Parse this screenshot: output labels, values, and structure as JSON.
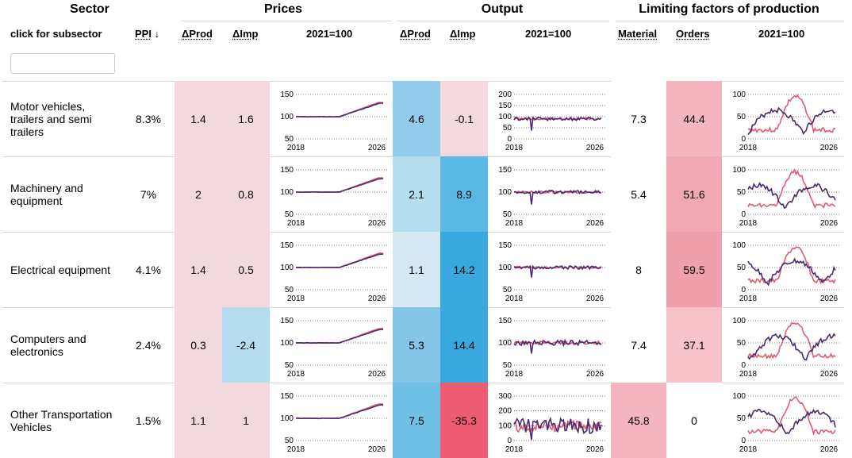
{
  "groups": {
    "sector": "Sector",
    "prices": "Prices",
    "output": "Output",
    "limiting": "Limiting factors of production"
  },
  "columns": {
    "subsector": "click for subsector",
    "ppi": "PPI",
    "ppi_sort": "↓",
    "p_dprod": "ΔProd",
    "p_dimp": "ΔImp",
    "p_index": "2021=100",
    "o_dprod": "ΔProd",
    "o_dimp": "ΔImp",
    "o_index": "2021=100",
    "material": "Material",
    "orders": "Orders",
    "l_index": "2021=100"
  },
  "filter": {
    "placeholder": "",
    "value": ""
  },
  "colors": {
    "series_a": "#e05c75",
    "series_b": "#4a2a6a",
    "blue_dark": "#39a8de",
    "red_dark": "#ee5c72"
  },
  "rows": [
    {
      "name": "Motor vehicles, trailers and semi trailers",
      "ppi": "8.3%",
      "p_dprod": "1.4",
      "p_dimp": "1.6",
      "o_dprod": "4.6",
      "o_dimp": "-0.1",
      "material": "7.3",
      "orders": "44.4",
      "bg": {
        "p_dprod": "#f3d9de",
        "p_dimp": "#f3d9de",
        "o_dprod": "#93ccea",
        "o_dimp": "#f3d9de",
        "material": "#ffffff",
        "orders": "#f5b5c0"
      },
      "prices": {
        "yticks": [
          "150",
          "100",
          "50"
        ],
        "xticks": [
          "2018",
          "2026"
        ]
      },
      "output": {
        "yticks": [
          "200",
          "150",
          "100",
          "50",
          "0"
        ],
        "xticks": [
          "2018",
          "2026"
        ]
      },
      "limit": {
        "yticks": [
          "100",
          "50",
          "0"
        ],
        "xticks": [
          "2018",
          "2026"
        ]
      }
    },
    {
      "name": "Machinery and equipment",
      "ppi": "7%",
      "p_dprod": "2",
      "p_dimp": "0.8",
      "o_dprod": "2.1",
      "o_dimp": "8.9",
      "material": "5.4",
      "orders": "51.6",
      "bg": {
        "p_dprod": "#f3d9de",
        "p_dimp": "#f3d9de",
        "o_dprod": "#b5dcef",
        "o_dimp": "#5ab8e5",
        "material": "#ffffff",
        "orders": "#f2a8b4"
      },
      "prices": {
        "yticks": [
          "150",
          "100",
          "50"
        ],
        "xticks": [
          "2018",
          "2026"
        ]
      },
      "output": {
        "yticks": [
          "150",
          "100",
          "50"
        ],
        "xticks": [
          "2018",
          "2026"
        ]
      },
      "limit": {
        "yticks": [
          "100",
          "50",
          "0"
        ],
        "xticks": [
          "2018",
          "2026"
        ]
      }
    },
    {
      "name": "Electrical equipment",
      "ppi": "4.1%",
      "p_dprod": "1.4",
      "p_dimp": "0.5",
      "o_dprod": "1.1",
      "o_dimp": "14.2",
      "material": "8",
      "orders": "59.5",
      "bg": {
        "p_dprod": "#f3d9de",
        "p_dimp": "#f3d9de",
        "o_dprod": "#d3e8f2",
        "o_dimp": "#39a8de",
        "material": "#ffffff",
        "orders": "#f0a0ad"
      },
      "prices": {
        "yticks": [
          "150",
          "100",
          "50"
        ],
        "xticks": [
          "2018",
          "2026"
        ]
      },
      "output": {
        "yticks": [
          "150",
          "100",
          "50"
        ],
        "xticks": [
          "2018",
          "2026"
        ]
      },
      "limit": {
        "yticks": [
          "100",
          "50",
          "0"
        ],
        "xticks": [
          "2018",
          "2026"
        ]
      }
    },
    {
      "name": "Computers and electronics",
      "ppi": "2.4%",
      "p_dprod": "0.3",
      "p_dimp": "-2.4",
      "o_dprod": "5.3",
      "o_dimp": "14.4",
      "material": "7.4",
      "orders": "37.1",
      "bg": {
        "p_dprod": "#f3d9de",
        "p_dimp": "#b5dcef",
        "o_dprod": "#85c6e8",
        "o_dimp": "#39a8de",
        "material": "#ffffff",
        "orders": "#f6c3cb"
      },
      "prices": {
        "yticks": [
          "150",
          "100",
          "50"
        ],
        "xticks": [
          "2018",
          "2026"
        ]
      },
      "output": {
        "yticks": [
          "150",
          "100",
          "50"
        ],
        "xticks": [
          "2018",
          "2026"
        ]
      },
      "limit": {
        "yticks": [
          "100",
          "50",
          "0"
        ],
        "xticks": [
          "2018",
          "2026"
        ]
      }
    },
    {
      "name": "Other Transportation Vehicles",
      "ppi": "1.5%",
      "p_dprod": "1.1",
      "p_dimp": "1",
      "o_dprod": "7.5",
      "o_dimp": "-35.3",
      "material": "45.8",
      "orders": "0",
      "bg": {
        "p_dprod": "#f3d9de",
        "p_dimp": "#f3d9de",
        "o_dprod": "#6fbfe6",
        "o_dimp": "#ee5c72",
        "material": "#f5b5c0",
        "orders": "#ffffff"
      },
      "prices": {
        "yticks": [
          "150",
          "100",
          "50"
        ],
        "xticks": [
          "2018",
          "2026"
        ]
      },
      "output": {
        "yticks": [
          "300",
          "200",
          "100",
          "0"
        ],
        "xticks": [
          "2018",
          "2026"
        ]
      },
      "limit": {
        "yticks": [
          "100",
          "50",
          "0"
        ],
        "xticks": [
          "2018",
          "2026"
        ]
      }
    }
  ]
}
